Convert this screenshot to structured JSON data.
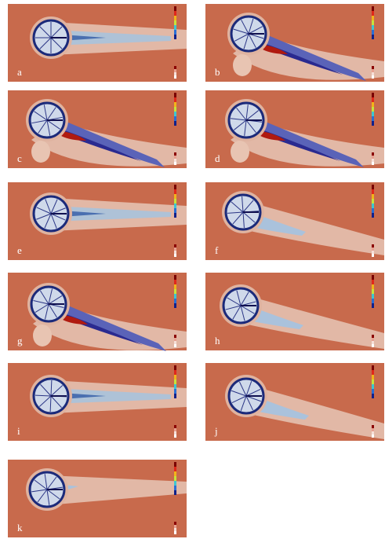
{
  "panels": [
    {
      "label": "a"
    },
    {
      "label": "b"
    },
    {
      "label": "c"
    },
    {
      "label": "d"
    },
    {
      "label": "e"
    },
    {
      "label": "f"
    },
    {
      "label": "g"
    },
    {
      "label": "h"
    },
    {
      "label": "i"
    },
    {
      "label": "j"
    },
    {
      "label": "k"
    }
  ]
}
